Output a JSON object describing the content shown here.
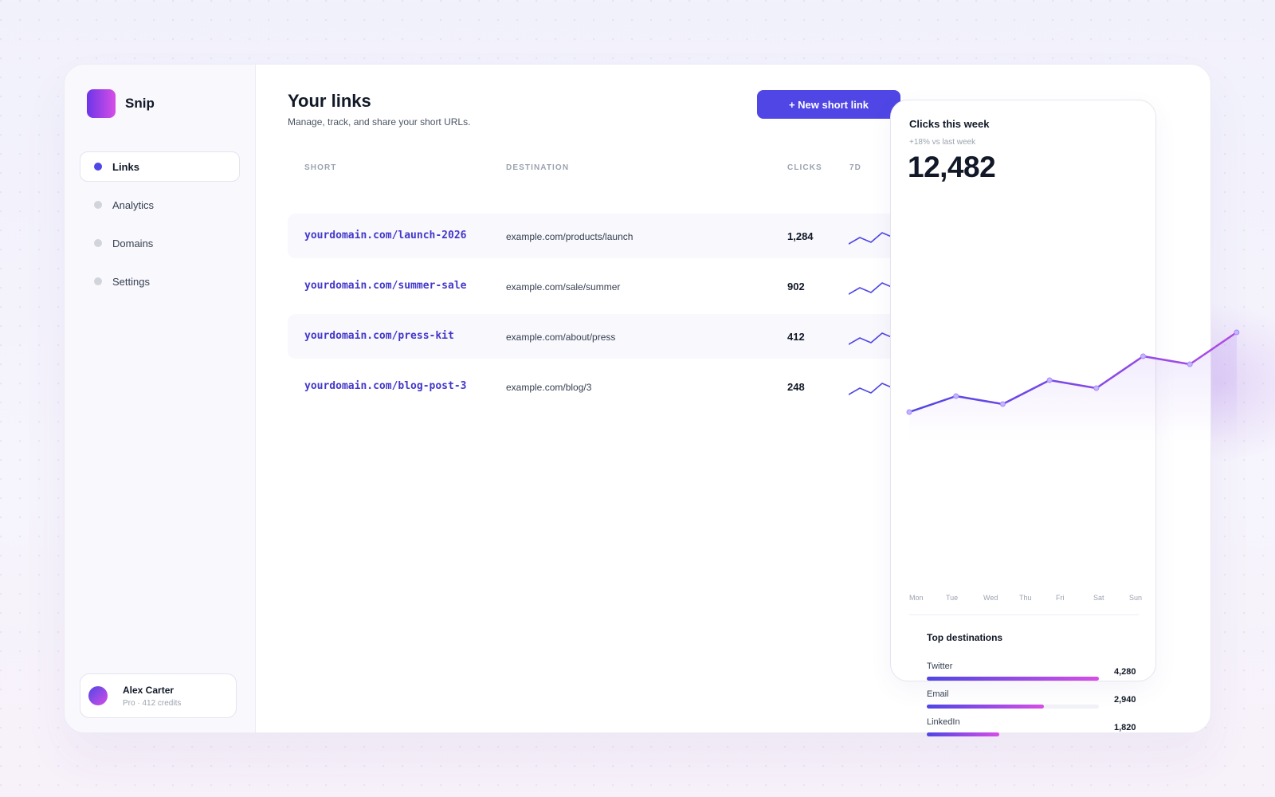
{
  "app": {
    "name": "Snip",
    "logo_icon": "app-logo-icon"
  },
  "sidebar": {
    "items": [
      {
        "label": "Links",
        "active": true
      },
      {
        "label": "Analytics",
        "active": false
      },
      {
        "label": "Domains",
        "active": false
      },
      {
        "label": "Settings",
        "active": false
      }
    ],
    "user": {
      "name": "Alex Carter",
      "meta": "Pro · 412 credits"
    }
  },
  "header": {
    "title": "Your links",
    "subtitle": "Manage, track, and share your short URLs.",
    "new_button_label": "+ New short link"
  },
  "table": {
    "columns": {
      "short": "SHORT",
      "destination": "DESTINATION",
      "clicks": "CLICKS",
      "trend": "7D"
    },
    "rows": [
      {
        "short": "yourdomain.com/launch-2026",
        "destination": "example.com/products/launch",
        "clicks": "1,284",
        "trend": [
          2,
          6,
          3,
          9,
          6,
          8
        ]
      },
      {
        "short": "yourdomain.com/summer-sale",
        "destination": "example.com/sale/summer",
        "clicks": "902",
        "trend": [
          2,
          6,
          3,
          9,
          6,
          8
        ]
      },
      {
        "short": "yourdomain.com/press-kit",
        "destination": "example.com/about/press",
        "clicks": "412",
        "trend": [
          2,
          6,
          3,
          9,
          6,
          8
        ]
      },
      {
        "short": "yourdomain.com/blog-post-3",
        "destination": "example.com/blog/3",
        "clicks": "248",
        "trend": [
          2,
          6,
          3,
          9,
          6,
          8
        ]
      }
    ]
  },
  "clicks_card": {
    "title": "Clicks this week",
    "change": "+18% vs last week",
    "total": "12,482",
    "days": [
      "Mon",
      "Tue",
      "Wed",
      "Thu",
      "Fri",
      "Sat",
      "Sun"
    ]
  },
  "top_destinations": {
    "title": "Top destinations",
    "items": [
      {
        "label": "Twitter",
        "value": "4,280",
        "share": 1.0
      },
      {
        "label": "Email",
        "value": "2,940",
        "share": 0.68
      },
      {
        "label": "LinkedIn",
        "value": "1,820",
        "share": 0.42
      }
    ]
  },
  "chart_data": {
    "type": "line",
    "x": [
      "Mon",
      "Tue",
      "Wed",
      "Thu",
      "Fri",
      "Sat",
      "Sun",
      ""
    ],
    "values": [
      0,
      2,
      1,
      4,
      3,
      7,
      6,
      10
    ],
    "colors": {
      "start": "#4f46e5",
      "end": "#b04be6"
    }
  },
  "colors": {
    "accent": "#4f46e5",
    "accent_pink": "#d64ee6",
    "link": "#4338ca"
  }
}
